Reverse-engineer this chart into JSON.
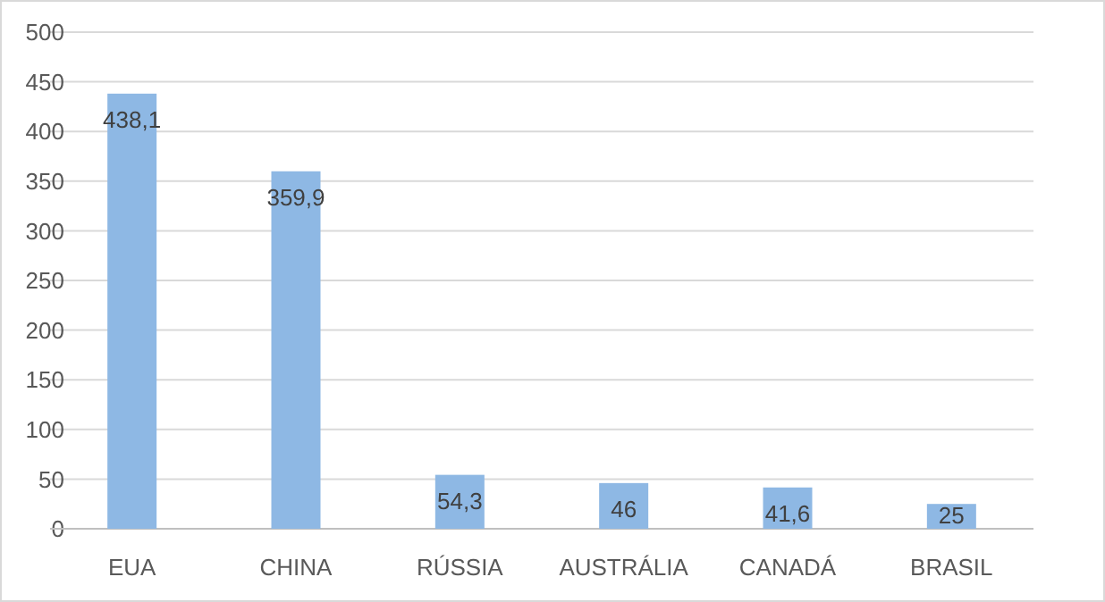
{
  "chart_data": {
    "type": "bar",
    "categories": [
      "EUA",
      "CHINA",
      "RÚSSIA",
      "AUSTRÁLIA",
      "CANADÁ",
      "BRASIL"
    ],
    "values": [
      438.1,
      359.9,
      54.3,
      46,
      41.6,
      25
    ],
    "value_labels": [
      "438,1",
      "359,9",
      "54,3",
      "46",
      "41,6",
      "25"
    ],
    "color": "#8eb8e4",
    "ylim": [
      0,
      500
    ],
    "yticks": [
      0,
      50,
      100,
      150,
      200,
      250,
      300,
      350,
      400,
      450,
      500
    ],
    "grid": "y"
  }
}
